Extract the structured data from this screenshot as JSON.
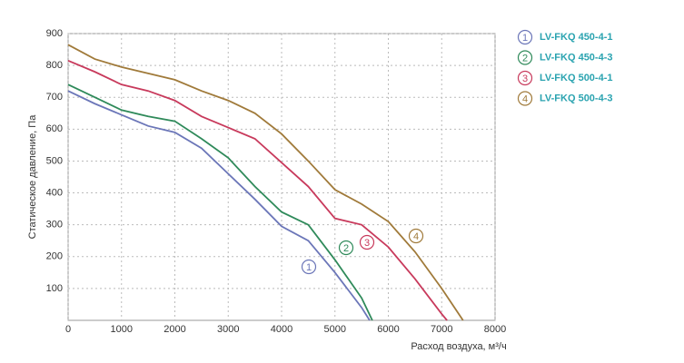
{
  "chart_data": {
    "type": "line",
    "xlabel": "Расход воздуха, м³/ч",
    "ylabel": "Статическое давление, Па",
    "xlim": [
      0,
      8000
    ],
    "xticks": [
      0,
      1000,
      2000,
      3000,
      4000,
      5000,
      6000,
      7000,
      8000
    ],
    "ylim": [
      0,
      900
    ],
    "yticks": [
      100,
      200,
      300,
      400,
      500,
      600,
      700,
      800,
      900
    ],
    "grid": true,
    "legend": "right",
    "series": [
      {
        "name": "LV-FKQ 450-4-1",
        "label": "1",
        "color": "#6b76b8",
        "x": [
          0,
          500,
          1000,
          1500,
          2000,
          2500,
          3000,
          3500,
          4000,
          4500,
          5000,
          5500,
          5650
        ],
        "values": [
          720,
          680,
          645,
          610,
          590,
          540,
          460,
          380,
          295,
          250,
          150,
          40,
          0
        ]
      },
      {
        "name": "LV-FKQ 450-4-3",
        "label": "2",
        "color": "#2f8a5a",
        "x": [
          0,
          500,
          1000,
          1500,
          2000,
          2500,
          3000,
          3500,
          4000,
          4500,
          5000,
          5500,
          5700
        ],
        "values": [
          740,
          700,
          660,
          640,
          625,
          570,
          510,
          420,
          340,
          300,
          190,
          70,
          0
        ]
      },
      {
        "name": "LV-FKQ 500-4-1",
        "label": "3",
        "color": "#c83a5c",
        "x": [
          0,
          500,
          1000,
          1500,
          2000,
          2500,
          3000,
          3500,
          4000,
          4500,
          5000,
          5500,
          6000,
          6500,
          7000,
          7100
        ],
        "values": [
          815,
          780,
          740,
          720,
          690,
          640,
          605,
          570,
          495,
          420,
          320,
          300,
          230,
          130,
          20,
          0
        ]
      },
      {
        "name": "LV-FKQ 500-4-3",
        "label": "4",
        "color": "#a07a3a",
        "x": [
          0,
          500,
          1000,
          1500,
          2000,
          2500,
          3000,
          3500,
          4000,
          4500,
          5000,
          5500,
          6000,
          6500,
          7000,
          7400
        ],
        "values": [
          865,
          820,
          795,
          775,
          755,
          720,
          690,
          650,
          585,
          500,
          410,
          365,
          310,
          215,
          100,
          0
        ]
      }
    ]
  }
}
